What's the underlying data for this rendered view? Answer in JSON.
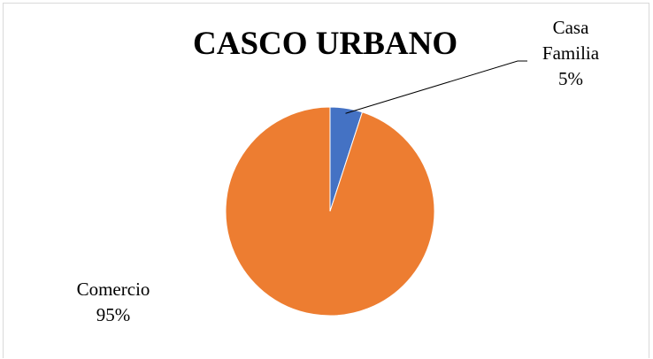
{
  "chart_data": {
    "type": "pie",
    "title": "CASCO URBANO",
    "slices": [
      {
        "label_lines": [
          "Casa",
          "Familia"
        ],
        "percent_label": "5%",
        "value": 5,
        "color": "#4472c4"
      },
      {
        "label_lines": [
          "Comercio"
        ],
        "percent_label": "95%",
        "value": 95,
        "color": "#ed7d31"
      }
    ],
    "start_angle_deg": 0,
    "direction": "clockwise",
    "legend": "none"
  }
}
